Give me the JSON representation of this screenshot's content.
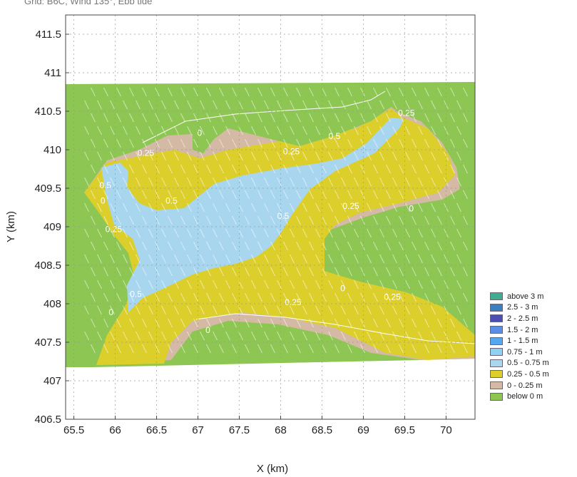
{
  "title": "Grid: B6C, Wind 135°, Ebb tide",
  "chart_data": {
    "type": "heatmap",
    "title": "Grid: B6C, Wind 135°, Ebb tide",
    "xlabel": "X (km)",
    "ylabel": "Y (km)",
    "xlim": [
      65.4,
      70.35
    ],
    "ylim": [
      406.5,
      411.75
    ],
    "xticks": [
      "65.5",
      "66",
      "66.5",
      "67",
      "67.5",
      "68",
      "68.5",
      "69",
      "69.5",
      "70"
    ],
    "yticks": [
      "406.5",
      "407",
      "407.5",
      "408",
      "408.5",
      "409",
      "409.5",
      "410",
      "410.5",
      "411",
      "411.5"
    ],
    "grid": true,
    "legend_position": "right",
    "legend": [
      {
        "label": "above 3 m",
        "color": "#3fae8e"
      },
      {
        "label": "2.5 - 3 m",
        "color": "#3b7fc0"
      },
      {
        "label": "2 - 2.5 m",
        "color": "#4d4fb0"
      },
      {
        "label": "1.5 - 2 m",
        "color": "#5a8ee6"
      },
      {
        "label": "1 - 1.5 m",
        "color": "#56a6f0"
      },
      {
        "label": "0.75 - 1 m",
        "color": "#8fd0f5"
      },
      {
        "label": "0.5 - 0.75 m",
        "color": "#a9d6ef"
      },
      {
        "label": "0.25 - 0.5 m",
        "color": "#dccf2b"
      },
      {
        "label": "0 - 0.25 m",
        "color": "#d4b9a5"
      },
      {
        "label": "below 0 m",
        "color": "#8ec653"
      }
    ],
    "contour_labels": [
      {
        "text": "0",
        "x": 67.02,
        "y": 410.18
      },
      {
        "text": "0.25",
        "x": 66.37,
        "y": 409.92
      },
      {
        "text": "0.25",
        "x": 68.13,
        "y": 409.94
      },
      {
        "text": "0.5",
        "x": 68.65,
        "y": 410.14
      },
      {
        "text": "0.25",
        "x": 69.52,
        "y": 410.44
      },
      {
        "text": "0.5",
        "x": 65.88,
        "y": 409.5
      },
      {
        "text": "0",
        "x": 65.85,
        "y": 409.3
      },
      {
        "text": "0.5",
        "x": 66.68,
        "y": 409.3
      },
      {
        "text": "0.25",
        "x": 68.85,
        "y": 409.23
      },
      {
        "text": "0",
        "x": 69.58,
        "y": 409.2
      },
      {
        "text": "0.5",
        "x": 68.03,
        "y": 409.1
      },
      {
        "text": "0.25",
        "x": 65.98,
        "y": 408.93
      },
      {
        "text": "0",
        "x": 68.75,
        "y": 408.16
      },
      {
        "text": "0.25",
        "x": 69.35,
        "y": 408.05
      },
      {
        "text": "0.5",
        "x": 66.25,
        "y": 408.09
      },
      {
        "text": "0.25",
        "x": 68.15,
        "y": 407.98
      },
      {
        "text": "0",
        "x": 65.95,
        "y": 407.85
      },
      {
        "text": "0",
        "x": 67.12,
        "y": 407.62
      }
    ]
  }
}
